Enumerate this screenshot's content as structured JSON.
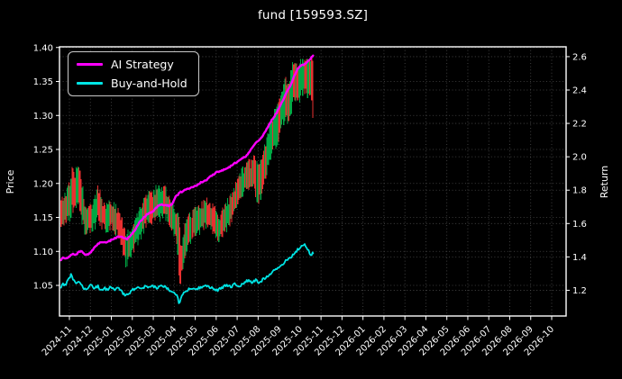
{
  "chart_data": {
    "type": "mixed-candlestick-line",
    "title": "fund [159593.SZ]",
    "grid": true,
    "legend": {
      "position": "upper-left",
      "entries": [
        {
          "label": "AI Strategy",
          "color": "#ff00ff"
        },
        {
          "label": "Buy-and-Hold",
          "color": "#00e5e5"
        }
      ]
    },
    "x_axis": {
      "tick_labels": [
        "2024-11",
        "2024-12",
        "2025-01",
        "2025-02",
        "2025-03",
        "2025-04",
        "2025-05",
        "2025-06",
        "2025-07",
        "2025-08",
        "2025-09",
        "2025-10",
        "2025-11",
        "2025-12",
        "2026-01",
        "2026-02",
        "2026-03",
        "2026-04",
        "2026-05",
        "2026-06",
        "2026-07",
        "2026-08",
        "2026-09",
        "2026-10"
      ]
    },
    "left_axis": {
      "label": "Price",
      "ticks": [
        1.05,
        1.1,
        1.15,
        1.2,
        1.25,
        1.3,
        1.35,
        1.4
      ],
      "range": [
        1.005,
        1.401
      ]
    },
    "right_axis": {
      "label": "Return",
      "ticks": [
        1.2,
        1.4,
        1.6,
        1.8,
        2.0,
        2.2,
        2.4,
        2.6
      ],
      "range": [
        1.046,
        2.659
      ]
    },
    "series": [
      {
        "name": "AI Strategy",
        "type": "line",
        "axis": "left",
        "color": "#ff00ff",
        "width": 2.4,
        "points": [
          [
            -0.4,
            1.088
          ],
          [
            -0.3,
            1.091
          ],
          [
            -0.2,
            1.089
          ],
          [
            -0.1,
            1.09
          ],
          [
            0.0,
            1.093
          ],
          [
            0.15,
            1.097
          ],
          [
            0.3,
            1.095
          ],
          [
            0.45,
            1.099
          ],
          [
            0.6,
            1.1
          ],
          [
            0.75,
            1.094
          ],
          [
            0.9,
            1.096
          ],
          [
            1.05,
            1.1
          ],
          [
            1.2,
            1.106
          ],
          [
            1.4,
            1.112
          ],
          [
            1.55,
            1.114
          ],
          [
            1.75,
            1.113
          ],
          [
            1.95,
            1.116
          ],
          [
            2.15,
            1.119
          ],
          [
            2.35,
            1.122
          ],
          [
            2.55,
            1.121
          ],
          [
            2.75,
            1.118
          ],
          [
            2.95,
            1.124
          ],
          [
            3.15,
            1.133
          ],
          [
            3.35,
            1.143
          ],
          [
            3.55,
            1.15
          ],
          [
            3.75,
            1.156
          ],
          [
            3.95,
            1.158
          ],
          [
            4.15,
            1.165
          ],
          [
            4.35,
            1.169
          ],
          [
            4.55,
            1.168
          ],
          [
            4.75,
            1.167
          ],
          [
            4.9,
            1.17
          ],
          [
            5.05,
            1.18
          ],
          [
            5.25,
            1.186
          ],
          [
            5.45,
            1.189
          ],
          [
            5.65,
            1.192
          ],
          [
            5.85,
            1.195
          ],
          [
            6.05,
            1.197
          ],
          [
            6.3,
            1.202
          ],
          [
            6.55,
            1.205
          ],
          [
            6.8,
            1.212
          ],
          [
            7.0,
            1.216
          ],
          [
            7.25,
            1.219
          ],
          [
            7.5,
            1.221
          ],
          [
            7.75,
            1.227
          ],
          [
            8.0,
            1.232
          ],
          [
            8.25,
            1.237
          ],
          [
            8.5,
            1.242
          ],
          [
            8.75,
            1.255
          ],
          [
            8.95,
            1.262
          ],
          [
            9.15,
            1.266
          ],
          [
            9.4,
            1.28
          ],
          [
            9.65,
            1.293
          ],
          [
            9.9,
            1.305
          ],
          [
            10.1,
            1.318
          ],
          [
            10.3,
            1.33
          ],
          [
            10.5,
            1.342
          ],
          [
            10.7,
            1.356
          ],
          [
            10.9,
            1.37
          ],
          [
            11.05,
            1.374
          ],
          [
            11.25,
            1.375
          ],
          [
            11.4,
            1.38
          ],
          [
            11.55,
            1.386
          ],
          [
            11.62,
            1.388
          ]
        ]
      },
      {
        "name": "Buy-and-Hold",
        "type": "line",
        "axis": "left",
        "color": "#00e5e5",
        "width": 1.8,
        "points": [
          [
            -0.4,
            1.048
          ],
          [
            -0.3,
            1.052
          ],
          [
            -0.2,
            1.05
          ],
          [
            -0.1,
            1.056
          ],
          [
            0.0,
            1.06
          ],
          [
            0.08,
            1.066
          ],
          [
            0.18,
            1.058
          ],
          [
            0.3,
            1.052
          ],
          [
            0.45,
            1.056
          ],
          [
            0.6,
            1.049
          ],
          [
            0.75,
            1.044
          ],
          [
            0.9,
            1.047
          ],
          [
            1.05,
            1.051
          ],
          [
            1.2,
            1.046
          ],
          [
            1.35,
            1.049
          ],
          [
            1.5,
            1.043
          ],
          [
            1.65,
            1.046
          ],
          [
            1.8,
            1.044
          ],
          [
            1.95,
            1.047
          ],
          [
            2.1,
            1.044
          ],
          [
            2.3,
            1.046
          ],
          [
            2.5,
            1.04
          ],
          [
            2.7,
            1.034
          ],
          [
            2.85,
            1.039
          ],
          [
            3.0,
            1.043
          ],
          [
            3.2,
            1.047
          ],
          [
            3.4,
            1.044
          ],
          [
            3.6,
            1.048
          ],
          [
            3.8,
            1.046
          ],
          [
            4.0,
            1.049
          ],
          [
            4.2,
            1.046
          ],
          [
            4.4,
            1.05
          ],
          [
            4.6,
            1.047
          ],
          [
            4.8,
            1.043
          ],
          [
            5.0,
            1.04
          ],
          [
            5.15,
            1.036
          ],
          [
            5.22,
            1.022
          ],
          [
            5.35,
            1.036
          ],
          [
            5.5,
            1.041
          ],
          [
            5.7,
            1.044
          ],
          [
            5.9,
            1.047
          ],
          [
            6.1,
            1.045
          ],
          [
            6.3,
            1.048
          ],
          [
            6.5,
            1.051
          ],
          [
            6.7,
            1.047
          ],
          [
            6.9,
            1.045
          ],
          [
            7.1,
            1.043
          ],
          [
            7.3,
            1.047
          ],
          [
            7.5,
            1.051
          ],
          [
            7.7,
            1.048
          ],
          [
            7.9,
            1.052
          ],
          [
            8.1,
            1.049
          ],
          [
            8.3,
            1.053
          ],
          [
            8.5,
            1.057
          ],
          [
            8.7,
            1.054
          ],
          [
            8.9,
            1.058
          ],
          [
            9.05,
            1.053
          ],
          [
            9.2,
            1.058
          ],
          [
            9.4,
            1.063
          ],
          [
            9.6,
            1.068
          ],
          [
            9.8,
            1.073
          ],
          [
            10.0,
            1.077
          ],
          [
            10.2,
            1.082
          ],
          [
            10.4,
            1.088
          ],
          [
            10.6,
            1.093
          ],
          [
            10.8,
            1.1
          ],
          [
            10.95,
            1.104
          ],
          [
            11.1,
            1.107
          ],
          [
            11.25,
            1.11
          ],
          [
            11.4,
            1.102
          ],
          [
            11.5,
            1.095
          ],
          [
            11.62,
            1.097
          ]
        ]
      },
      {
        "name": "fund daily high-low bars",
        "type": "hl-bars",
        "axis": "left",
        "up_color": "#00a844",
        "down_color": "#e83030",
        "bars_per_month": 21,
        "envelope": [
          [
            -0.4,
            1.135,
            1.175
          ],
          [
            -0.25,
            1.142,
            1.182
          ],
          [
            -0.1,
            1.148,
            1.19
          ],
          [
            0.05,
            1.15,
            1.2
          ],
          [
            0.12,
            1.165,
            1.228
          ],
          [
            0.25,
            1.162,
            1.21
          ],
          [
            0.43,
            1.17,
            1.234
          ],
          [
            0.55,
            1.15,
            1.205
          ],
          [
            0.7,
            1.135,
            1.18
          ],
          [
            0.8,
            1.126,
            1.162
          ],
          [
            0.95,
            1.132,
            1.168
          ],
          [
            1.1,
            1.13,
            1.166
          ],
          [
            1.25,
            1.14,
            1.18
          ],
          [
            1.37,
            1.15,
            1.196
          ],
          [
            1.5,
            1.14,
            1.18
          ],
          [
            1.65,
            1.134,
            1.17
          ],
          [
            1.8,
            1.13,
            1.164
          ],
          [
            1.95,
            1.138,
            1.174
          ],
          [
            2.1,
            1.134,
            1.17
          ],
          [
            2.25,
            1.128,
            1.164
          ],
          [
            2.4,
            1.118,
            1.154
          ],
          [
            2.55,
            1.1,
            1.14
          ],
          [
            2.7,
            1.082,
            1.124
          ],
          [
            2.85,
            1.09,
            1.13
          ],
          [
            3.0,
            1.1,
            1.14
          ],
          [
            3.15,
            1.11,
            1.15
          ],
          [
            3.3,
            1.118,
            1.158
          ],
          [
            3.5,
            1.128,
            1.172
          ],
          [
            3.65,
            1.138,
            1.182
          ],
          [
            3.8,
            1.146,
            1.188
          ],
          [
            4.0,
            1.144,
            1.186
          ],
          [
            4.15,
            1.15,
            1.192
          ],
          [
            4.3,
            1.148,
            1.19
          ],
          [
            4.5,
            1.154,
            1.194
          ],
          [
            4.65,
            1.148,
            1.186
          ],
          [
            4.8,
            1.138,
            1.178
          ],
          [
            4.95,
            1.128,
            1.168
          ],
          [
            5.08,
            1.116,
            1.158
          ],
          [
            5.17,
            1.095,
            1.15
          ],
          [
            5.24,
            1.048,
            1.158
          ],
          [
            5.32,
            1.058,
            1.11
          ],
          [
            5.42,
            1.078,
            1.12
          ],
          [
            5.52,
            1.098,
            1.138
          ],
          [
            5.65,
            1.108,
            1.148
          ],
          [
            5.8,
            1.118,
            1.154
          ],
          [
            5.95,
            1.124,
            1.158
          ],
          [
            6.1,
            1.128,
            1.162
          ],
          [
            6.25,
            1.13,
            1.166
          ],
          [
            6.4,
            1.134,
            1.17
          ],
          [
            6.55,
            1.138,
            1.176
          ],
          [
            6.7,
            1.134,
            1.17
          ],
          [
            6.85,
            1.128,
            1.164
          ],
          [
            7.0,
            1.124,
            1.16
          ],
          [
            7.15,
            1.116,
            1.152
          ],
          [
            7.3,
            1.124,
            1.158
          ],
          [
            7.45,
            1.13,
            1.166
          ],
          [
            7.6,
            1.138,
            1.176
          ],
          [
            7.75,
            1.148,
            1.186
          ],
          [
            7.9,
            1.158,
            1.196
          ],
          [
            8.05,
            1.168,
            1.206
          ],
          [
            8.2,
            1.178,
            1.214
          ],
          [
            8.35,
            1.188,
            1.224
          ],
          [
            8.5,
            1.198,
            1.234
          ],
          [
            8.65,
            1.19,
            1.228
          ],
          [
            8.8,
            1.198,
            1.238
          ],
          [
            8.95,
            1.17,
            1.236
          ],
          [
            9.1,
            1.18,
            1.228
          ],
          [
            9.25,
            1.198,
            1.246
          ],
          [
            9.4,
            1.216,
            1.264
          ],
          [
            9.55,
            1.234,
            1.284
          ],
          [
            9.7,
            1.246,
            1.296
          ],
          [
            9.85,
            1.258,
            1.308
          ],
          [
            10.0,
            1.268,
            1.322
          ],
          [
            10.15,
            1.286,
            1.338
          ],
          [
            10.3,
            1.298,
            1.352
          ],
          [
            10.45,
            1.288,
            1.346
          ],
          [
            10.6,
            1.308,
            1.368
          ],
          [
            10.75,
            1.328,
            1.38
          ],
          [
            10.9,
            1.318,
            1.374
          ],
          [
            11.05,
            1.33,
            1.38
          ],
          [
            11.2,
            1.34,
            1.386
          ],
          [
            11.35,
            1.33,
            1.378
          ],
          [
            11.5,
            1.338,
            1.386
          ],
          [
            11.62,
            1.29,
            1.376
          ]
        ]
      }
    ],
    "style": {
      "background": "#000000",
      "text_color": "#ffffff",
      "grid_color": "#4d4d4d",
      "spine_color": "#ffffff"
    }
  }
}
